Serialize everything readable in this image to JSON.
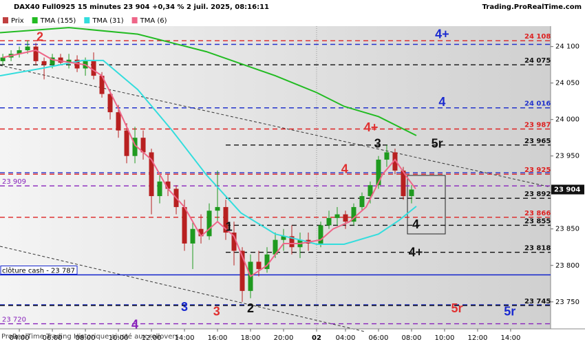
{
  "chart_data": {
    "type": "candlestick",
    "title": "DAX40 Full0925 15 minutes 23 904 +0,34 % 2 juil. 2025, 08:16:11",
    "source": "Trading.ProRealTime.com",
    "footer": "ProRealTime Trading  Historique ajusté aux rollovers",
    "price_name": "Prix",
    "price_legend_color": "#c04040",
    "up_color": "#1f9a1f",
    "down_color": "#b82020",
    "x": [
      3,
      3.5,
      4,
      4.5,
      5,
      5.5,
      6,
      6.5,
      7,
      7.5,
      8,
      8.5,
      9,
      9.5,
      10,
      10.5,
      11,
      11.5,
      12,
      12.5,
      13,
      13.5,
      14,
      14.5,
      15,
      15.5,
      16,
      16.5,
      17,
      17.5,
      18,
      18.5,
      19,
      19.5,
      20,
      20.5,
      21,
      21.5,
      22.25,
      22.75,
      23.25,
      23.75,
      24.25,
      24.75,
      25.25,
      25.75,
      26.25,
      26.75,
      27.25,
      27.75
    ],
    "open": [
      24080,
      24085,
      24090,
      24095,
      24100,
      24080,
      24075,
      24085,
      24078,
      24082,
      24070,
      24080,
      24060,
      24035,
      24010,
      23985,
      23950,
      23975,
      23955,
      23895,
      23915,
      23905,
      23880,
      23830,
      23850,
      23840,
      23875,
      23880,
      23845,
      23820,
      23765,
      23805,
      23795,
      23815,
      23835,
      23840,
      23825,
      23835,
      23830,
      23855,
      23865,
      23870,
      23860,
      23880,
      23895,
      23910,
      23945,
      23955,
      23930,
      23895
    ],
    "high": [
      24090,
      24095,
      24100,
      24108,
      24105,
      24085,
      24090,
      24090,
      24090,
      24088,
      24085,
      24092,
      24065,
      24040,
      24020,
      23995,
      23990,
      23985,
      23960,
      23925,
      23925,
      23910,
      23890,
      23860,
      23870,
      23885,
      23930,
      23890,
      23860,
      23825,
      23815,
      23820,
      23825,
      23845,
      23850,
      23855,
      23845,
      23845,
      23860,
      23875,
      23880,
      23875,
      23885,
      23900,
      23915,
      23950,
      23965,
      23960,
      23935,
      23910
    ],
    "low": [
      24075,
      24080,
      24085,
      24090,
      24075,
      24055,
      24070,
      24075,
      24070,
      24065,
      24060,
      24055,
      24030,
      24000,
      23975,
      23940,
      23940,
      23945,
      23870,
      23885,
      23895,
      23870,
      23820,
      23795,
      23830,
      23835,
      23860,
      23835,
      23800,
      23750,
      23755,
      23785,
      23790,
      23810,
      23820,
      23815,
      23810,
      23820,
      23825,
      23850,
      23855,
      23850,
      23855,
      23875,
      23885,
      23905,
      23935,
      23925,
      23890,
      23885
    ],
    "close": [
      24085,
      24090,
      24095,
      24100,
      24080,
      24075,
      24085,
      24078,
      24082,
      24070,
      24080,
      24060,
      24035,
      24010,
      23985,
      23950,
      23975,
      23955,
      23895,
      23915,
      23905,
      23880,
      23830,
      23850,
      23840,
      23875,
      23880,
      23845,
      23820,
      23765,
      23805,
      23795,
      23815,
      23835,
      23840,
      23825,
      23835,
      23830,
      23855,
      23865,
      23870,
      23860,
      23880,
      23895,
      23910,
      23945,
      23955,
      23930,
      23895,
      23904
    ],
    "series": [
      {
        "name": "TMA (155)",
        "color": "#22bb22",
        "x": [
          2.83,
          7,
          11.17,
          15.33,
          19.5,
          22,
          23.67,
          25.75,
          28.04
        ],
        "values": [
          24119,
          24126,
          24117,
          24093,
          24060,
          24037,
          24018,
          24004,
          23978
        ]
      },
      {
        "name": "TMA (31)",
        "color": "#33dddd",
        "x": [
          2.83,
          5.33,
          7.83,
          9.08,
          11.17,
          13.25,
          15.33,
          17.42,
          19.5,
          21.17,
          22,
          23.67,
          25.75,
          27,
          28.04
        ],
        "values": [
          24060,
          24070,
          24081,
          24081,
          24041,
          23985,
          23924,
          23872,
          23843,
          23834,
          23829,
          23829,
          23843,
          23862,
          23881
        ]
      },
      {
        "name": "TMA (6)",
        "color": "#ee6688",
        "x": [
          3,
          5,
          6,
          8,
          9,
          10,
          11,
          12,
          13,
          14,
          15,
          16,
          17,
          18,
          19,
          20,
          21,
          22.25,
          23,
          24,
          25,
          26,
          26.75,
          27.5,
          28
        ],
        "values": [
          24085,
          24095,
          24082,
          24075,
          24060,
          24015,
          23965,
          23945,
          23905,
          23880,
          23840,
          23860,
          23840,
          23785,
          23800,
          23830,
          23830,
          23835,
          23850,
          23860,
          23880,
          23925,
          23945,
          23920,
          23905
        ]
      }
    ],
    "levels": [
      {
        "value": 24108,
        "label": "24 108",
        "color": "#dd2222"
      },
      {
        "value": 24103,
        "color": "#2233cc"
      },
      {
        "value": 24075,
        "label": "24 075",
        "color": "#111111"
      },
      {
        "value": 24016,
        "label": "24 016",
        "color": "#2233cc"
      },
      {
        "value": 23987,
        "label": "23 987",
        "color": "#dd2222"
      },
      {
        "value": 23965,
        "label": "23 965",
        "color": "#111111",
        "from": 16.5
      },
      {
        "value": 23927,
        "color": "#2233cc"
      },
      {
        "value": 23925,
        "label": "23 925",
        "color": "#dd2222"
      },
      {
        "value": 23909,
        "label": "23 909",
        "color": "#8822bb",
        "side": "left"
      },
      {
        "value": 23892,
        "label": "23 892",
        "color": "#111111",
        "from": 16.5
      },
      {
        "value": 23866,
        "label": "23 866",
        "color": "#dd2222"
      },
      {
        "value": 23855,
        "label": "23 855",
        "color": "#111111",
        "from": 16.5
      },
      {
        "value": 23818,
        "label": "23 818",
        "color": "#111111",
        "from": 16.5
      },
      {
        "value": 23787,
        "label": "clôture cash - 23 787",
        "color": "#1122cc",
        "side": "left",
        "style": "solid"
      },
      {
        "value": 23746,
        "color": "#2233cc"
      },
      {
        "value": 23745,
        "label": "23 745",
        "color": "#111111"
      },
      {
        "value": 23720,
        "label": "23 720",
        "color": "#8822bb",
        "side": "left"
      }
    ],
    "last": {
      "value": 23904,
      "label": "23 904"
    },
    "annotations": [
      {
        "text": "2",
        "x": 5.25,
        "y": 24112,
        "color": "#e03030"
      },
      {
        "text": "4+",
        "x": 29.6,
        "y": 24116,
        "color": "#1a2ad0"
      },
      {
        "text": "4",
        "x": 29.6,
        "y": 24023,
        "color": "#1a2ad0"
      },
      {
        "text": "4+",
        "x": 25.3,
        "y": 23988,
        "color": "#e03030"
      },
      {
        "text": "3",
        "x": 25.7,
        "y": 23966,
        "color": "#111111"
      },
      {
        "text": "5r",
        "x": 29.3,
        "y": 23966,
        "color": "#111111"
      },
      {
        "text": "4",
        "x": 23.7,
        "y": 23931,
        "color": "#e03030"
      },
      {
        "text": "1",
        "x": 16.7,
        "y": 23852,
        "color": "#111111"
      },
      {
        "text": "4",
        "x": 28,
        "y": 23855,
        "color": "#111111"
      },
      {
        "text": "4+",
        "x": 28,
        "y": 23817,
        "color": "#111111"
      },
      {
        "text": "3",
        "x": 14,
        "y": 23742,
        "color": "#1a2ad0"
      },
      {
        "text": "3",
        "x": 15.95,
        "y": 23736,
        "color": "#e03030"
      },
      {
        "text": "2",
        "x": 18,
        "y": 23740,
        "color": "#111111"
      },
      {
        "text": "5r",
        "x": 30.5,
        "y": 23740,
        "color": "#e03030"
      },
      {
        "text": "5r",
        "x": 33.7,
        "y": 23736,
        "color": "#1a2ad0"
      },
      {
        "text": "4",
        "x": 11,
        "y": 23718,
        "color": "#8822bb"
      }
    ],
    "xlim": [
      2.83,
      36.17
    ],
    "ylim": [
      23713,
      24128
    ],
    "xticks": [
      {
        "value": 4,
        "label": "04:00"
      },
      {
        "value": 6,
        "label": "06:00"
      },
      {
        "value": 8,
        "label": "08:00"
      },
      {
        "value": 10,
        "label": "10:00"
      },
      {
        "value": 12,
        "label": "12:00"
      },
      {
        "value": 14,
        "label": "14:00"
      },
      {
        "value": 16,
        "label": "16:00"
      },
      {
        "value": 18,
        "label": "18:00"
      },
      {
        "value": 20,
        "label": "20:00"
      },
      {
        "value": 22,
        "label": "02"
      },
      {
        "value": 23.75,
        "label": "04:00"
      },
      {
        "value": 25.75,
        "label": "06:00"
      },
      {
        "value": 27.75,
        "label": "08:00"
      },
      {
        "value": 29.75,
        "label": "10:00"
      },
      {
        "value": 31.75,
        "label": "12:00"
      },
      {
        "value": 33.75,
        "label": "14:00"
      }
    ],
    "yticks": [
      {
        "value": 23750,
        "label": "23 750"
      },
      {
        "value": 23800,
        "label": "23 800"
      },
      {
        "value": 23850,
        "label": "23 850"
      },
      {
        "value": 23900,
        "label": "23 900"
      },
      {
        "value": 23950,
        "label": "23 950"
      },
      {
        "value": 24000,
        "label": "24 000"
      },
      {
        "value": 24050,
        "label": "24 050"
      },
      {
        "value": 24100,
        "label": "24 100"
      }
    ]
  }
}
